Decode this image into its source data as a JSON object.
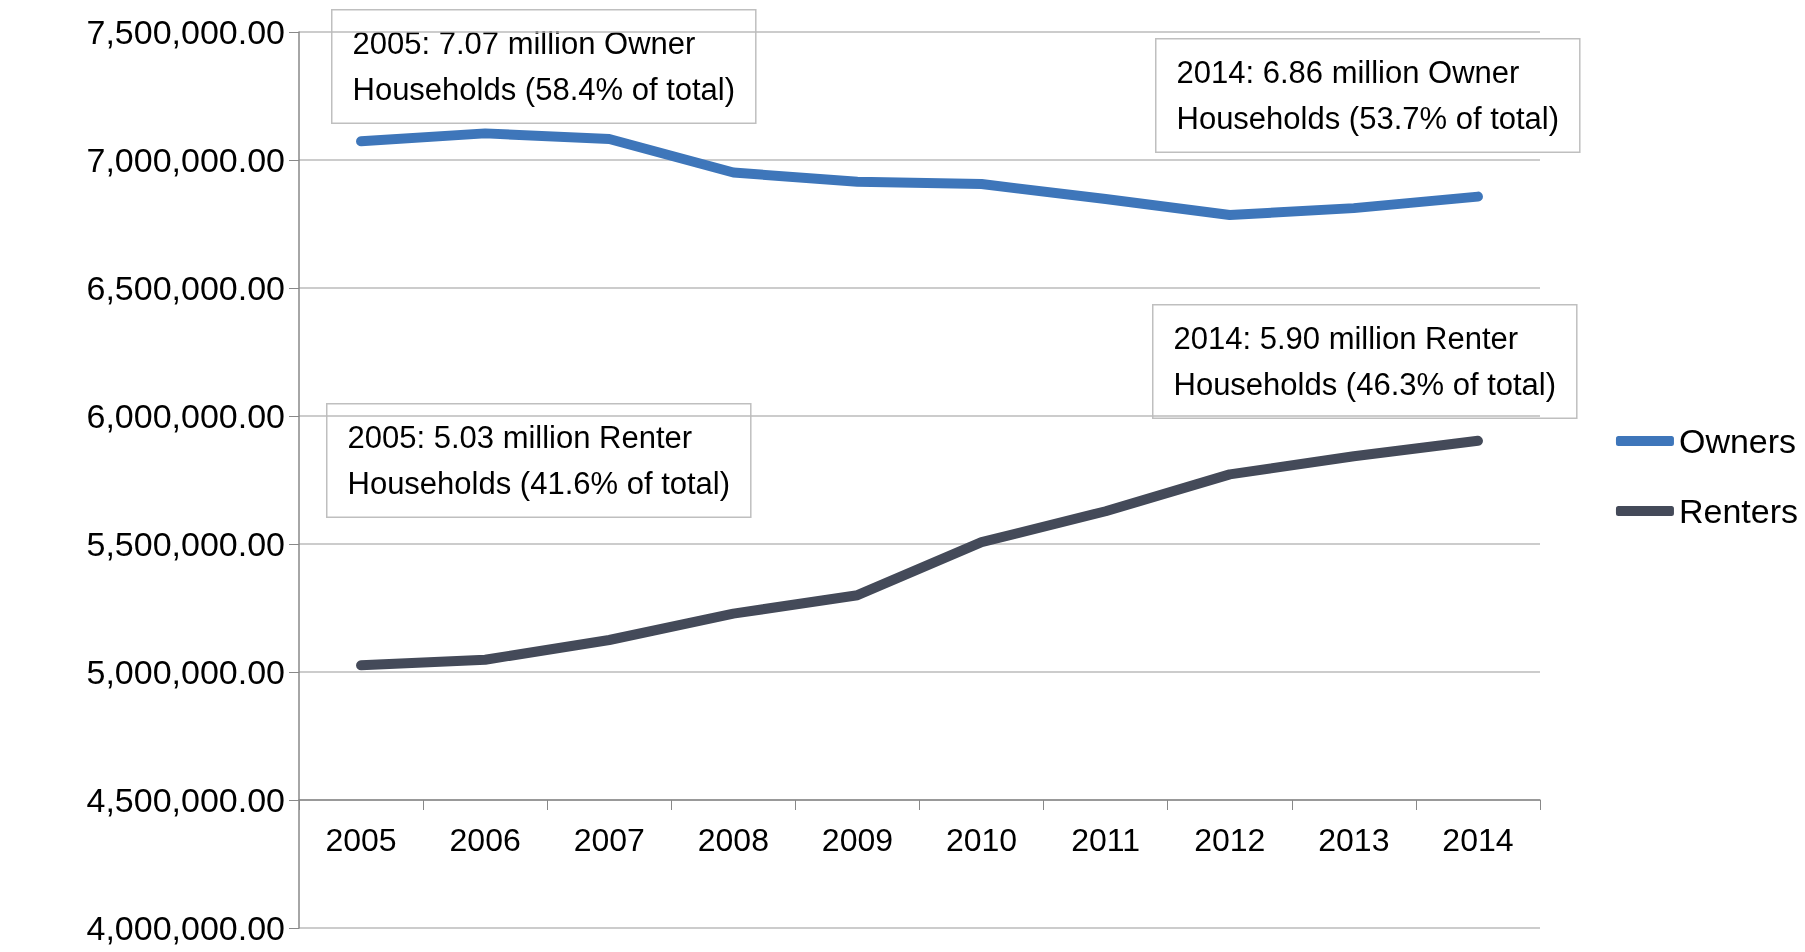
{
  "chart_data": {
    "type": "line",
    "categories": [
      "2005",
      "2006",
      "2007",
      "2008",
      "2009",
      "2010",
      "2011",
      "2012",
      "2013",
      "2014"
    ],
    "series": [
      {
        "name": "Owners",
        "color": "#3e76ba",
        "values": [
          7073000,
          7104000,
          7082000,
          6951000,
          6915000,
          6906000,
          6848000,
          6785000,
          6812000,
          6857000
        ]
      },
      {
        "name": "Renters",
        "color": "#444a59",
        "values": [
          5026000,
          5048000,
          5125000,
          5228000,
          5300000,
          5507000,
          5628000,
          5772000,
          5843000,
          5903000
        ]
      }
    ],
    "ylim": [
      4000000,
      7500000
    ],
    "yticks": [
      {
        "value": 4000000,
        "label": "4,000,000.00"
      },
      {
        "value": 4500000,
        "label": "4,500,000.00"
      },
      {
        "value": 5000000,
        "label": "5,000,000.00"
      },
      {
        "value": 5500000,
        "label": "5,500,000.00"
      },
      {
        "value": 6000000,
        "label": "6,000,000.00"
      },
      {
        "value": 6500000,
        "label": "6,500,000.00"
      },
      {
        "value": 7000000,
        "label": "7,000,000.00"
      },
      {
        "value": 7500000,
        "label": "7,500,000.00"
      }
    ],
    "grid": "y",
    "legend": "right",
    "marker": "none",
    "line_style": "solid",
    "annotations": [
      "2005: 7.07 million Owner\nHouseholds (58.4% of total)",
      "2014: 6.86 million Owner\nHouseholds (53.7% of total)",
      "2014: 5.90 million Renter\nHouseholds (46.3% of total)",
      "2005: 5.03 million Renter\nHouseholds (41.6% of total)"
    ]
  }
}
